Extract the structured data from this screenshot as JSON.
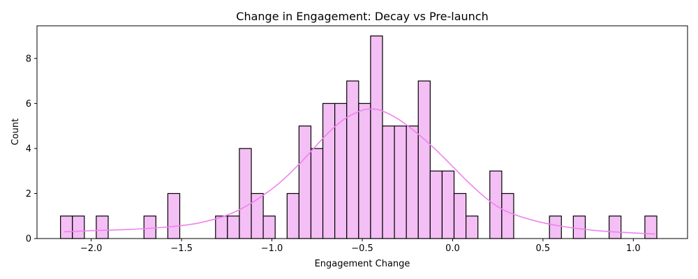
{
  "chart_data": {
    "type": "bar",
    "title": "Change in Engagement: Decay vs Pre-launch",
    "xlabel": "Engagement Change",
    "ylabel": "Count",
    "xlim": [
      -2.3,
      1.3
    ],
    "ylim": [
      0,
      9.45
    ],
    "x_ticks": [
      -2.0,
      -1.5,
      -1.0,
      -0.5,
      0.0,
      0.5,
      1.0
    ],
    "x_tick_labels": [
      "−2.0",
      "−1.5",
      "−1.0",
      "−0.5",
      "0.0",
      "0.5",
      "1.0"
    ],
    "y_ticks": [
      0,
      2,
      4,
      6,
      8
    ],
    "y_tick_labels": [
      "0",
      "2",
      "4",
      "6",
      "8"
    ],
    "grid": false,
    "bar_color": "#f4bff4",
    "bar_edge_color": "#000000",
    "kde_color": "#ee82ee",
    "bin_edges": [
      -2.17,
      -2.104,
      -2.038,
      -1.972,
      -1.906,
      -1.84,
      -1.774,
      -1.708,
      -1.642,
      -1.576,
      -1.51,
      -1.444,
      -1.378,
      -1.312,
      -1.246,
      -1.18,
      -1.114,
      -1.048,
      -0.982,
      -0.916,
      -0.85,
      -0.784,
      -0.718,
      -0.652,
      -0.586,
      -0.52,
      -0.454,
      -0.388,
      -0.322,
      -0.256,
      -0.19,
      -0.124,
      -0.058,
      0.008,
      0.074,
      0.14,
      0.206,
      0.272,
      0.338,
      0.404,
      0.47,
      0.536,
      0.602,
      0.668,
      0.734,
      0.8,
      0.866,
      0.932,
      0.998,
      1.064,
      1.13
    ],
    "counts": [
      1,
      1,
      0,
      1,
      0,
      0,
      0,
      1,
      0,
      2,
      0,
      0,
      0,
      1,
      1,
      4,
      2,
      1,
      0,
      2,
      5,
      4,
      6,
      6,
      7,
      6,
      9,
      5,
      5,
      5,
      7,
      3,
      3,
      2,
      1,
      0,
      3,
      2,
      0,
      0,
      0,
      1,
      0,
      1,
      0,
      0,
      1,
      0,
      0,
      1
    ],
    "kde": {
      "x": [
        -2.15,
        -2.0,
        -1.8,
        -1.6,
        -1.4,
        -1.2,
        -1.0,
        -0.85,
        -0.7,
        -0.6,
        -0.5,
        -0.45,
        -0.4,
        -0.3,
        -0.2,
        -0.1,
        0.0,
        0.1,
        0.2,
        0.3,
        0.45,
        0.6,
        0.8,
        1.0,
        1.12
      ],
      "y": [
        0.3,
        0.35,
        0.4,
        0.5,
        0.7,
        1.2,
        2.2,
        3.3,
        4.6,
        5.3,
        5.7,
        5.75,
        5.7,
        5.3,
        4.7,
        4.0,
        3.2,
        2.4,
        1.7,
        1.2,
        0.8,
        0.55,
        0.35,
        0.25,
        0.2
      ]
    }
  }
}
